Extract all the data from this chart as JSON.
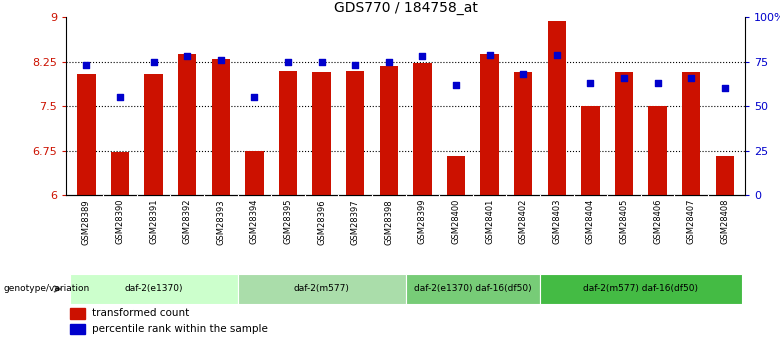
{
  "title": "GDS770 / 184758_at",
  "samples": [
    "GSM28389",
    "GSM28390",
    "GSM28391",
    "GSM28392",
    "GSM28393",
    "GSM28394",
    "GSM28395",
    "GSM28396",
    "GSM28397",
    "GSM28398",
    "GSM28399",
    "GSM28400",
    "GSM28401",
    "GSM28402",
    "GSM28403",
    "GSM28404",
    "GSM28405",
    "GSM28406",
    "GSM28407",
    "GSM28408"
  ],
  "bar_values": [
    8.05,
    6.72,
    8.05,
    8.38,
    8.3,
    6.74,
    8.1,
    8.07,
    8.1,
    8.17,
    8.22,
    6.65,
    8.38,
    8.08,
    8.93,
    7.5,
    8.08,
    7.5,
    8.08,
    6.65
  ],
  "dot_values": [
    73,
    55,
    75,
    78,
    76,
    55,
    75,
    75,
    73,
    75,
    78,
    62,
    79,
    68,
    79,
    63,
    66,
    63,
    66,
    60
  ],
  "ylim_left": [
    6.0,
    9.0
  ],
  "ylim_right": [
    0,
    100
  ],
  "yticks_left": [
    6.0,
    6.75,
    7.5,
    8.25,
    9.0
  ],
  "yticks_right": [
    0,
    25,
    50,
    75,
    100
  ],
  "ytick_labels_left": [
    "6",
    "6.75",
    "7.5",
    "8.25",
    "9"
  ],
  "ytick_labels_right": [
    "0",
    "25",
    "50",
    "75",
    "100%"
  ],
  "bar_color": "#cc1100",
  "dot_color": "#0000cc",
  "hline_values": [
    6.75,
    7.5,
    8.25
  ],
  "group_labels": [
    "daf-2(e1370)",
    "daf-2(m577)",
    "daf-2(e1370) daf-16(df50)",
    "daf-2(m577) daf-16(df50)"
  ],
  "group_ranges": [
    [
      0,
      4
    ],
    [
      5,
      9
    ],
    [
      10,
      13
    ],
    [
      14,
      19
    ]
  ],
  "group_colors": [
    "#ccffcc",
    "#99ee99",
    "#66dd66",
    "#33cc33"
  ],
  "genotype_label": "genotype/variation",
  "legend_bar_label": "transformed count",
  "legend_dot_label": "percentile rank within the sample",
  "xlabel_area_color": "#bbbbbb",
  "bg_color": "#ffffff",
  "title_fontsize": 10
}
